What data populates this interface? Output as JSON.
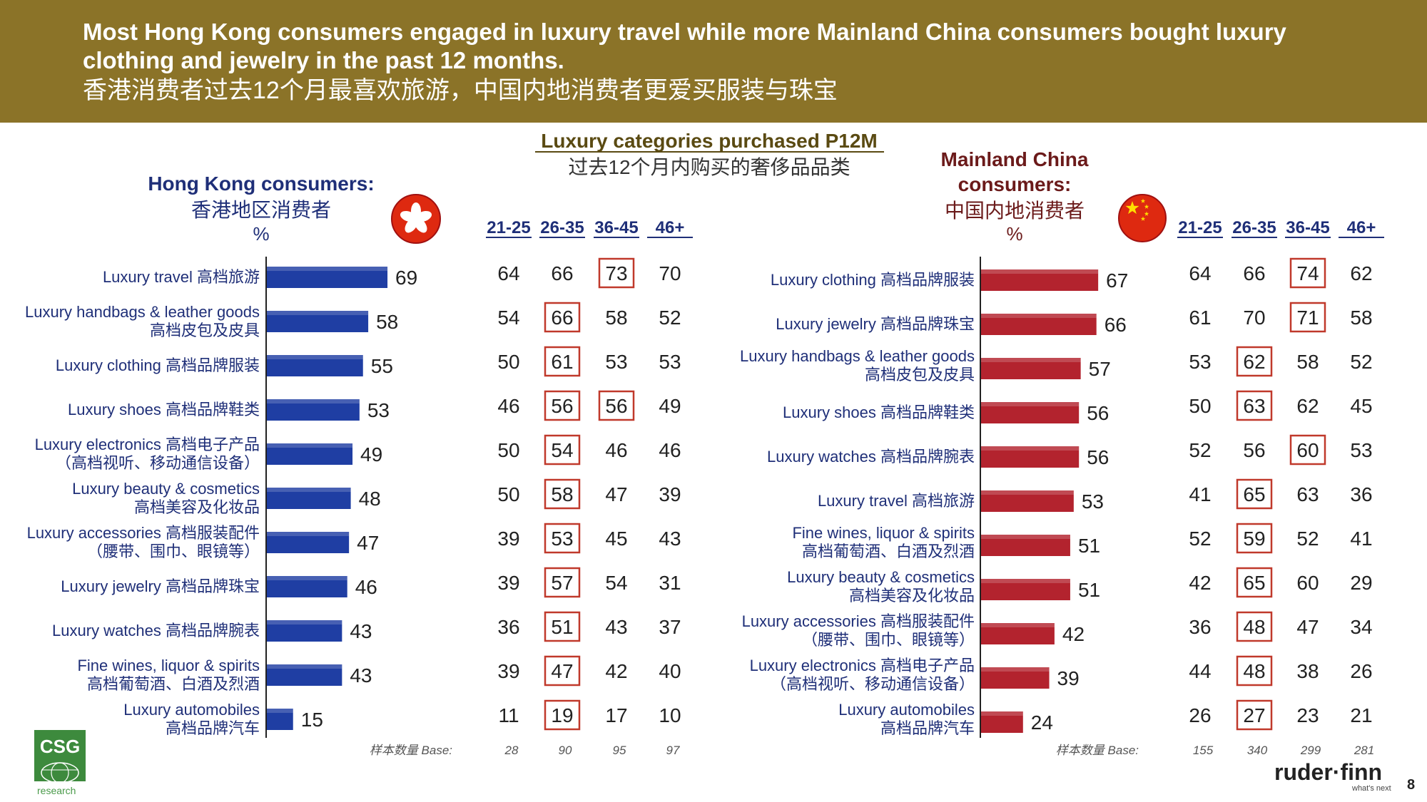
{
  "header": {
    "line1": "Most Hong Kong consumers engaged in luxury travel while more Mainland China consumers bought luxury",
    "line2": "clothing and jewelry in the past 12 months.",
    "line3": "香港消费者过去12个月最喜欢旅游，中国内地消费者更爱买服装与珠宝"
  },
  "center_title": {
    "en": "Luxury categories purchased P12M",
    "zh": "过去12个月内购买的奢侈品品类"
  },
  "logo": {
    "name": "CSG",
    "sub": "research"
  },
  "brand": {
    "name": "ruder·finn",
    "tagline": "what's next"
  },
  "page_number": "8",
  "colors": {
    "header_bg": "#8b7328",
    "hk_bar": "#1f3ea3",
    "cn_bar": "#b3232e",
    "hk_title": "#1f2f78",
    "cn_title": "#6b1a1a",
    "highlight_box": "#c0392b"
  },
  "chart_data": [
    {
      "type": "bar",
      "orientation": "horizontal",
      "title": {
        "line1": "Hong Kong consumers:",
        "line2": "香港地区消费者",
        "line3": "%"
      },
      "flag_icon": "hong-kong-flag-icon",
      "age_groups": [
        "21-25",
        "26-35",
        "36-45",
        "46+"
      ],
      "base_label": "样本数量 Base:",
      "base": [
        "28",
        "90",
        "95",
        "97"
      ],
      "categories": [
        {
          "en": "Luxury travel",
          "zh": "高档旅游",
          "sub": "",
          "value": 69,
          "by_age": [
            64,
            66,
            73,
            70
          ],
          "highlight": [
            2
          ]
        },
        {
          "en": "Luxury handbags & leather goods",
          "zh": "",
          "sub": "高档皮包及皮具",
          "value": 58,
          "by_age": [
            54,
            66,
            58,
            52
          ],
          "highlight": [
            1
          ]
        },
        {
          "en": "Luxury clothing",
          "zh": "高档品牌服装",
          "sub": "",
          "value": 55,
          "by_age": [
            50,
            61,
            53,
            53
          ],
          "highlight": [
            1
          ]
        },
        {
          "en": "Luxury shoes",
          "zh": "高档品牌鞋类",
          "sub": "",
          "value": 53,
          "by_age": [
            46,
            56,
            56,
            49
          ],
          "highlight": [
            1,
            2
          ]
        },
        {
          "en": "Luxury electronics",
          "zh": "高档电子产品",
          "sub": "（高档视听、移动通信设备）",
          "value": 49,
          "by_age": [
            50,
            54,
            46,
            46
          ],
          "highlight": [
            1
          ]
        },
        {
          "en": "Luxury beauty & cosmetics",
          "zh": "",
          "sub": "高档美容及化妆品",
          "value": 48,
          "by_age": [
            50,
            58,
            47,
            39
          ],
          "highlight": [
            1
          ]
        },
        {
          "en": "Luxury accessories",
          "zh": "高档服装配件",
          "sub": "（腰带、围巾、眼镜等）",
          "value": 47,
          "by_age": [
            39,
            53,
            45,
            43
          ],
          "highlight": [
            1
          ]
        },
        {
          "en": "Luxury jewelry",
          "zh": "高档品牌珠宝",
          "sub": "",
          "value": 46,
          "by_age": [
            39,
            57,
            54,
            31
          ],
          "highlight": [
            1
          ]
        },
        {
          "en": "Luxury watches",
          "zh": "高档品牌腕表",
          "sub": "",
          "value": 43,
          "by_age": [
            36,
            51,
            43,
            37
          ],
          "highlight": [
            1
          ]
        },
        {
          "en": "Fine wines, liquor & spirits",
          "zh": "",
          "sub": "高档葡萄酒、白酒及烈酒",
          "value": 43,
          "by_age": [
            39,
            47,
            42,
            40
          ],
          "highlight": [
            1
          ]
        },
        {
          "en": "Luxury automobiles",
          "zh": "",
          "sub": "高档品牌汽车",
          "value": 15,
          "by_age": [
            11,
            19,
            17,
            10
          ],
          "highlight": [
            1
          ]
        }
      ]
    },
    {
      "type": "bar",
      "orientation": "horizontal",
      "title": {
        "line1": "Mainland China",
        "line2": "consumers:",
        "line3": "中国内地消费者",
        "line4": "%"
      },
      "flag_icon": "china-flag-icon",
      "age_groups": [
        "21-25",
        "26-35",
        "36-45",
        "46+"
      ],
      "base_label": "样本数量 Base:",
      "base": [
        "155",
        "340",
        "299",
        "281"
      ],
      "categories": [
        {
          "en": "Luxury clothing",
          "zh": "高档品牌服装",
          "sub": "",
          "value": 67,
          "by_age": [
            64,
            66,
            74,
            62
          ],
          "highlight": [
            2
          ]
        },
        {
          "en": "Luxury jewelry",
          "zh": "高档品牌珠宝",
          "sub": "",
          "value": 66,
          "by_age": [
            61,
            70,
            71,
            58
          ],
          "highlight": [
            2
          ]
        },
        {
          "en": "Luxury handbags & leather goods",
          "zh": "",
          "sub": "高档皮包及皮具",
          "value": 57,
          "by_age": [
            53,
            62,
            58,
            52
          ],
          "highlight": [
            1
          ]
        },
        {
          "en": "Luxury shoes",
          "zh": "高档品牌鞋类",
          "sub": "",
          "value": 56,
          "by_age": [
            50,
            63,
            62,
            45
          ],
          "highlight": [
            1
          ]
        },
        {
          "en": "Luxury watches",
          "zh": "高档品牌腕表",
          "sub": "",
          "value": 56,
          "by_age": [
            52,
            56,
            60,
            53
          ],
          "highlight": [
            2
          ]
        },
        {
          "en": "Luxury travel",
          "zh": "高档旅游",
          "sub": "",
          "value": 53,
          "by_age": [
            41,
            65,
            63,
            36
          ],
          "highlight": [
            1
          ]
        },
        {
          "en": "Fine wines, liquor & spirits",
          "zh": "",
          "sub": "高档葡萄酒、白酒及烈酒",
          "value": 51,
          "by_age": [
            52,
            59,
            52,
            41
          ],
          "highlight": [
            1
          ]
        },
        {
          "en": "Luxury beauty & cosmetics",
          "zh": "",
          "sub": "高档美容及化妆品",
          "value": 51,
          "by_age": [
            42,
            65,
            60,
            29
          ],
          "highlight": [
            1
          ]
        },
        {
          "en": "Luxury accessories",
          "zh": "高档服装配件",
          "sub": "（腰带、围巾、眼镜等）",
          "value": 42,
          "by_age": [
            36,
            48,
            47,
            34
          ],
          "highlight": [
            1
          ]
        },
        {
          "en": "Luxury electronics",
          "zh": "高档电子产品",
          "sub": "（高档视听、移动通信设备）",
          "value": 39,
          "by_age": [
            44,
            48,
            38,
            26
          ],
          "highlight": [
            1
          ]
        },
        {
          "en": "Luxury automobiles",
          "zh": "",
          "sub": "高档品牌汽车",
          "value": 24,
          "by_age": [
            26,
            27,
            23,
            21
          ],
          "highlight": [
            1
          ]
        }
      ]
    }
  ]
}
